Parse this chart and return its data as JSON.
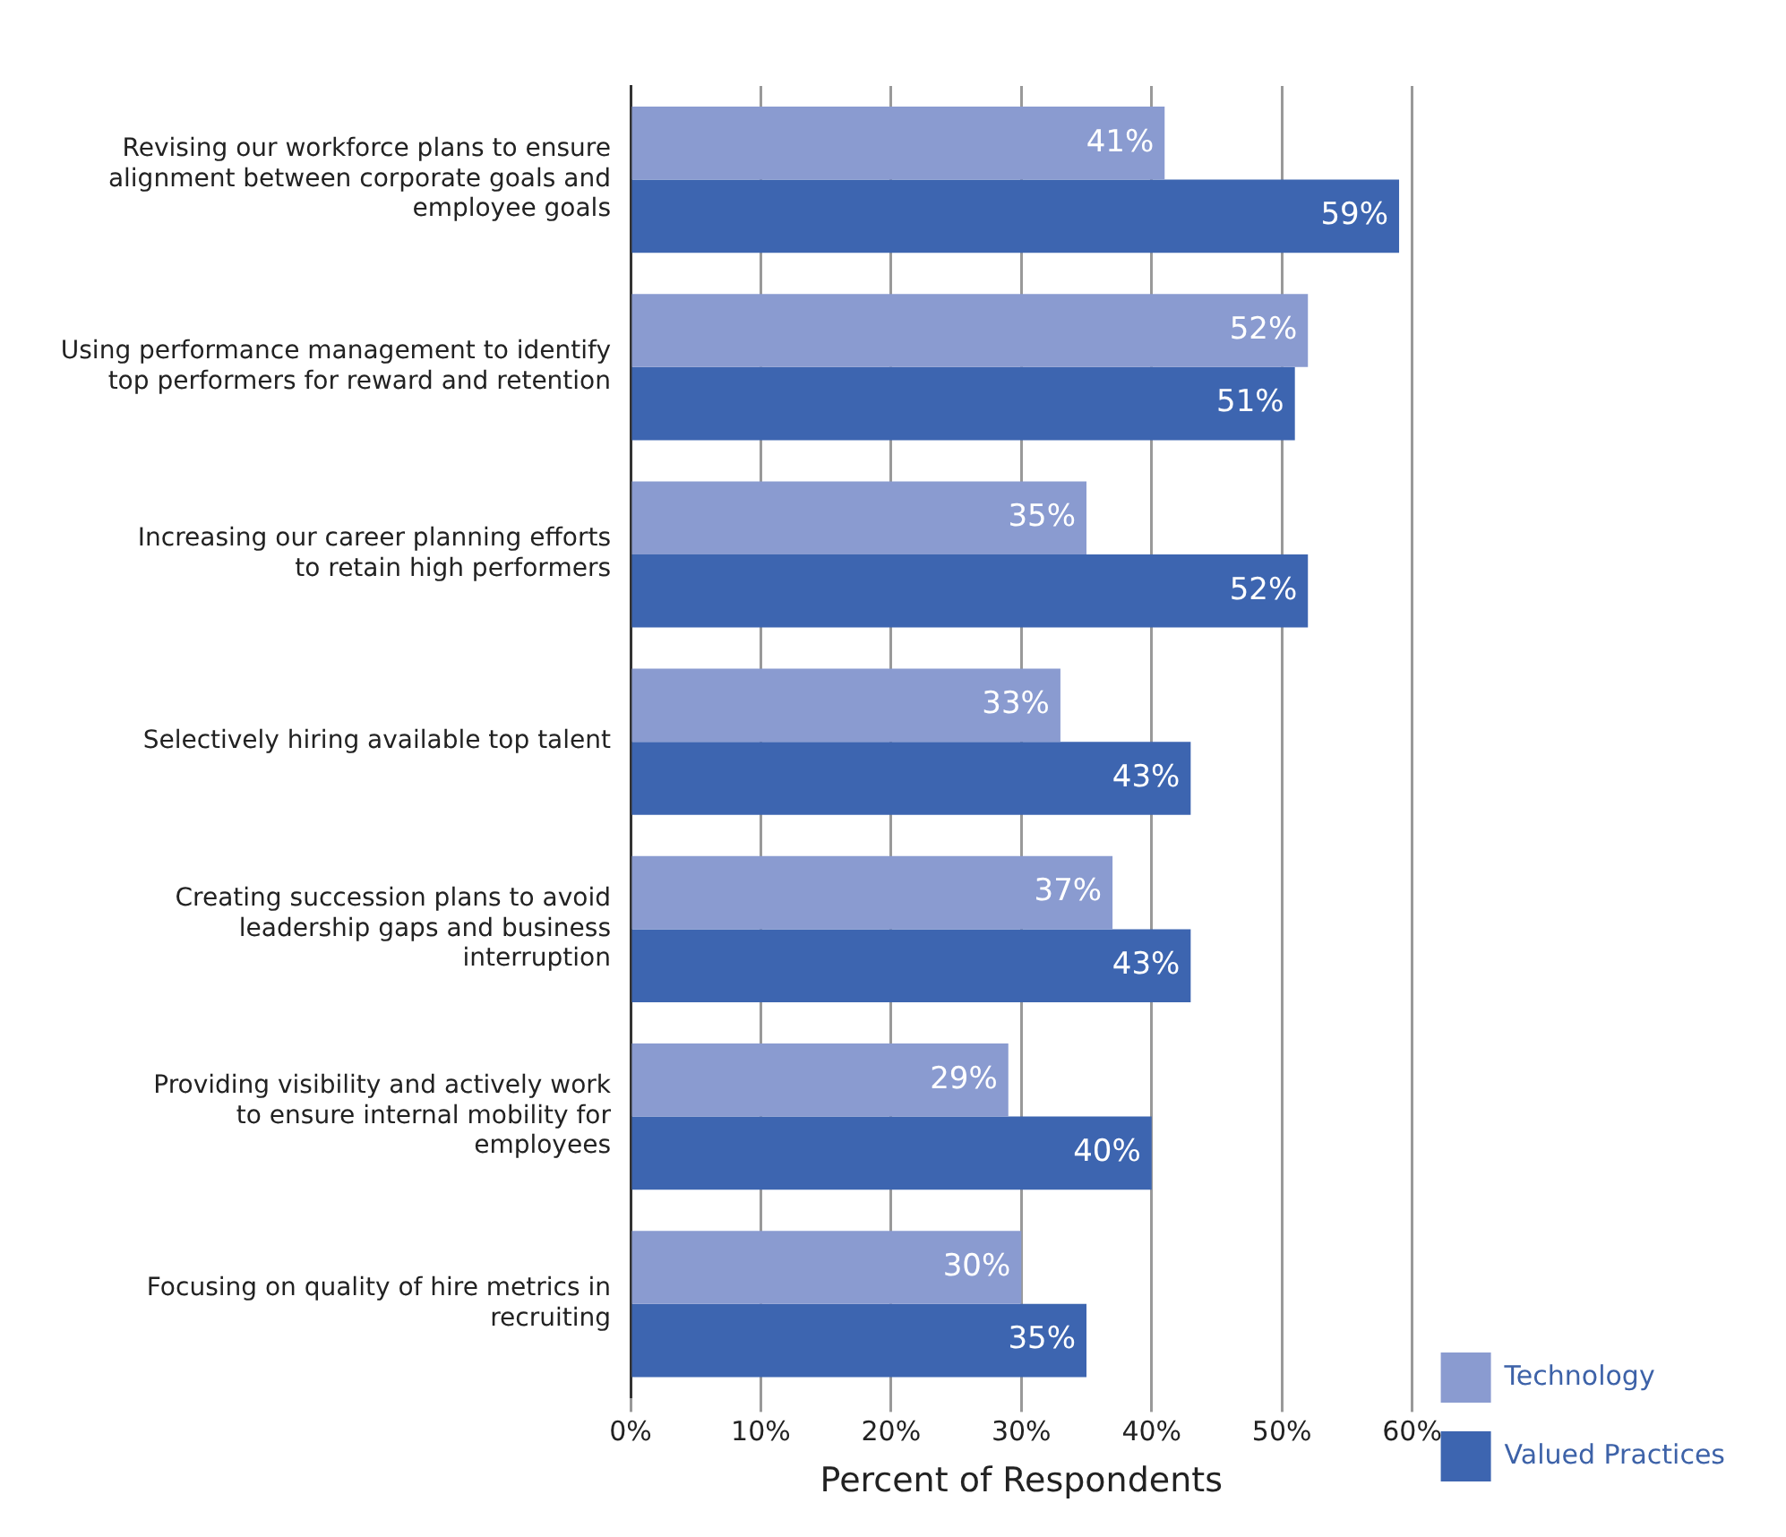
{
  "chart_data": {
    "type": "bar",
    "orientation": "horizontal",
    "xlabel": "Percent of Respondents",
    "categories": [
      "Revising our workforce plans to ensure alignment between corporate goals and employee goals",
      "Using performance management to identify top performers for reward and retention",
      "Increasing our career planning efforts to retain high performers",
      "Selectively hiring available top talent",
      "Creating succession plans to avoid leadership gaps and business interruption",
      "Providing visibility and actively work to ensure internal mobility for employees",
      "Focusing on quality of hire metrics in recruiting"
    ],
    "series": [
      {
        "name": "Technology",
        "color": "#8a9bd0",
        "values": [
          41,
          52,
          35,
          33,
          37,
          29,
          30
        ],
        "value_labels": [
          "41%",
          "52%",
          "35%",
          "33%",
          "37%",
          "29%",
          "30%"
        ]
      },
      {
        "name": "Valued Practices",
        "color": "#3d65b0",
        "values": [
          59,
          51,
          52,
          43,
          43,
          40,
          35
        ],
        "value_labels": [
          "59%",
          "51%",
          "52%",
          "43%",
          "43%",
          "40%",
          "35%"
        ]
      }
    ],
    "xlim": [
      0,
      60
    ],
    "xticks": [
      {
        "value": 0,
        "label": "0%"
      },
      {
        "value": 10,
        "label": "10%"
      },
      {
        "value": 20,
        "label": "20%"
      },
      {
        "value": 30,
        "label": "30%"
      },
      {
        "value": 40,
        "label": "40%"
      },
      {
        "value": 50,
        "label": "50%"
      },
      {
        "value": 60,
        "label": "60%"
      }
    ],
    "grid": "x",
    "legend": "right"
  }
}
